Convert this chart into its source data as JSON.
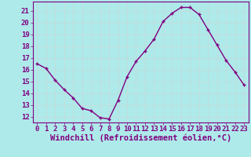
{
  "x": [
    0,
    1,
    2,
    3,
    4,
    5,
    6,
    7,
    8,
    9,
    10,
    11,
    12,
    13,
    14,
    15,
    16,
    17,
    18,
    19,
    20,
    21,
    22,
    23
  ],
  "y": [
    16.5,
    16.1,
    15.1,
    14.3,
    13.6,
    12.7,
    12.5,
    11.9,
    11.8,
    13.4,
    15.4,
    16.7,
    17.6,
    18.6,
    20.1,
    20.8,
    21.3,
    21.3,
    20.7,
    19.4,
    18.1,
    16.8,
    15.8,
    14.7
  ],
  "line_color": "#800080",
  "marker": "+",
  "marker_color": "#800080",
  "bg_color": "#aeeaea",
  "grid_color": "#c0dede",
  "tick_label_color": "#800080",
  "xlabel": "Windchill (Refroidissement éolien,°C)",
  "xlabel_color": "#800080",
  "yticks": [
    12,
    13,
    14,
    15,
    16,
    17,
    18,
    19,
    20,
    21
  ],
  "ylim": [
    11.5,
    21.8
  ],
  "xlim": [
    -0.5,
    23.5
  ],
  "xtick_labels": [
    "0",
    "1",
    "2",
    "3",
    "4",
    "5",
    "6",
    "7",
    "8",
    "9",
    "10",
    "11",
    "12",
    "13",
    "14",
    "15",
    "16",
    "17",
    "18",
    "19",
    "20",
    "21",
    "22",
    "23"
  ],
  "font_size": 6.5,
  "xlabel_font_size": 7.5,
  "linewidth": 1.0,
  "marker_size": 3
}
